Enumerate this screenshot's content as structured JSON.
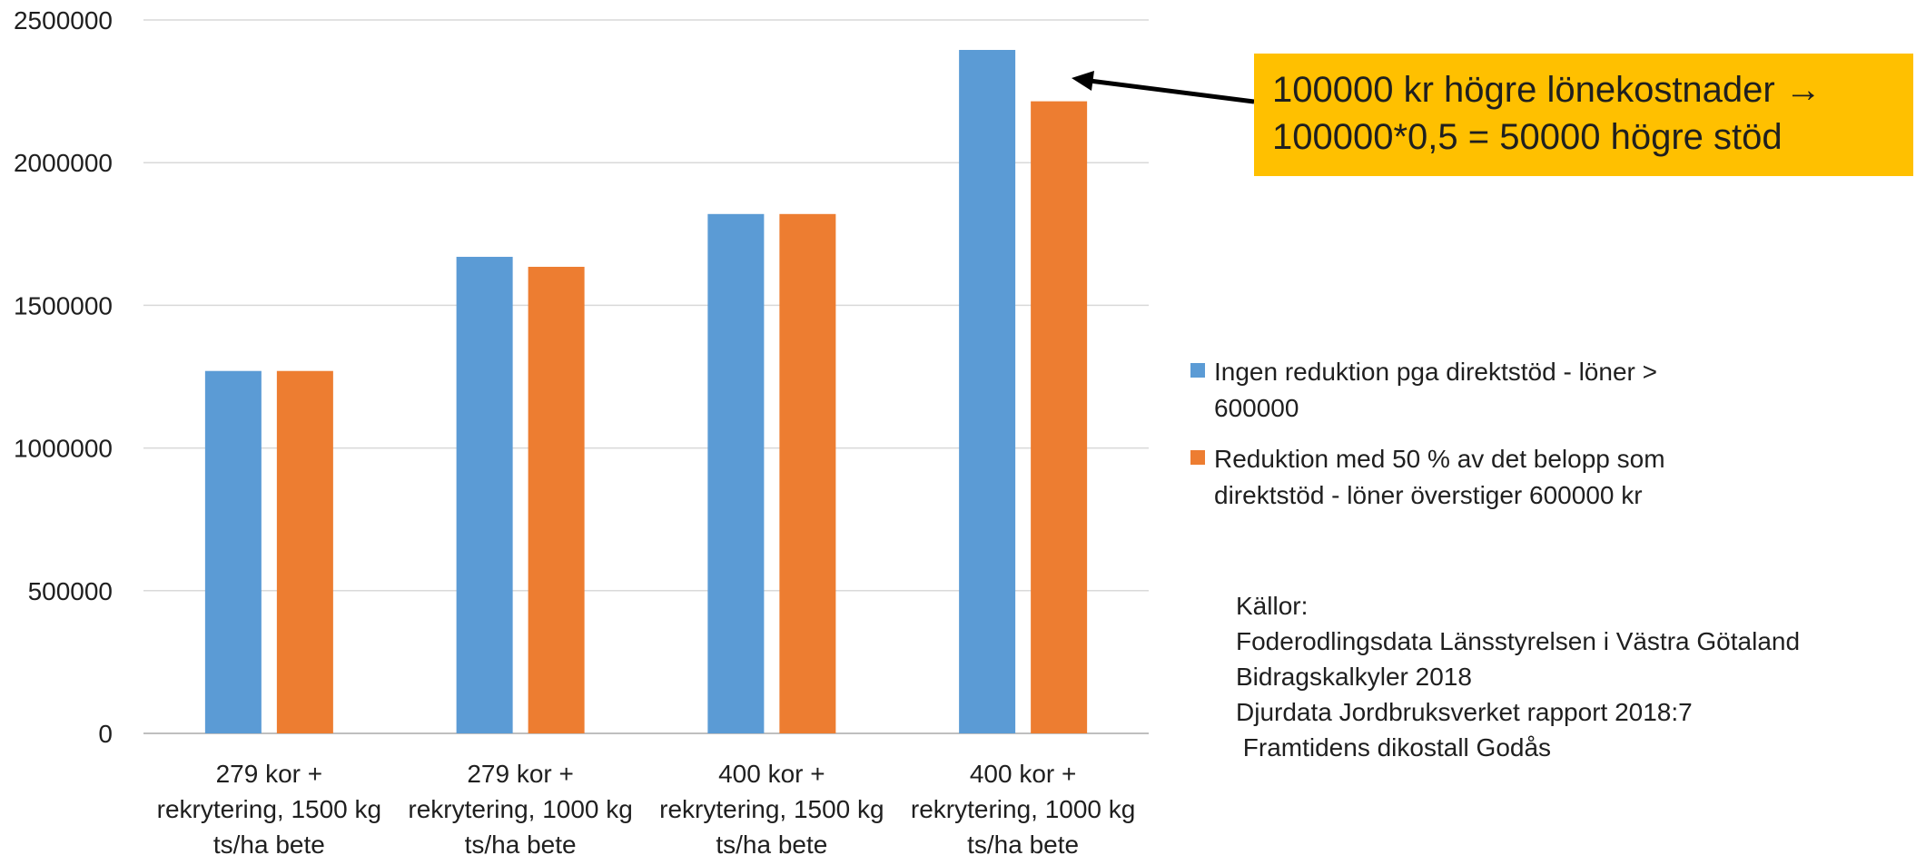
{
  "chart_data": {
    "type": "bar",
    "categories": [
      [
        "279 kor +",
        "rekrytering, 1500 kg",
        "ts/ha bete"
      ],
      [
        "279 kor +",
        "rekrytering, 1000 kg",
        "ts/ha bete"
      ],
      [
        "400 kor +",
        "rekrytering, 1500 kg",
        "ts/ha bete"
      ],
      [
        "400 kor +",
        "rekrytering, 1000 kg",
        "ts/ha bete"
      ]
    ],
    "series": [
      {
        "name": "Ingen reduktion pga direktstöd - löner > 600000",
        "name_lines": [
          "Ingen reduktion pga direktstöd - löner >",
          "600000"
        ],
        "color": "#5b9bd5",
        "values": [
          1270000,
          1670000,
          1820000,
          2395000
        ]
      },
      {
        "name": "Reduktion med 50 % av det belopp som direktstöd - löner överstiger 600000 kr",
        "name_lines": [
          "Reduktion med 50 % av det belopp som",
          "direktstöd - löner överstiger 600000 kr"
        ],
        "color": "#ed7d31",
        "values": [
          1270000,
          1635000,
          1820000,
          2215000
        ]
      }
    ],
    "yticks": [
      "0",
      "500000",
      "1000000",
      "1500000",
      "2000000",
      "2500000"
    ],
    "ylim": [
      0,
      2500000
    ],
    "grid": true,
    "legend_position": "right",
    "gridline_color": "#d9d9d9"
  },
  "callout": {
    "line1": "100000 kr högre lönekostnader →",
    "line2": "100000*0,5 = 50000 högre stöd",
    "background": "#ffc000"
  },
  "sources": {
    "heading": "Källor:",
    "lines": [
      "Foderodlingsdata Länsstyrelsen i Västra Götaland",
      "Bidragskalkyler 2018",
      "Djurdata Jordbruksverket rapport 2018:7",
      " Framtidens dikostall Godås"
    ]
  }
}
